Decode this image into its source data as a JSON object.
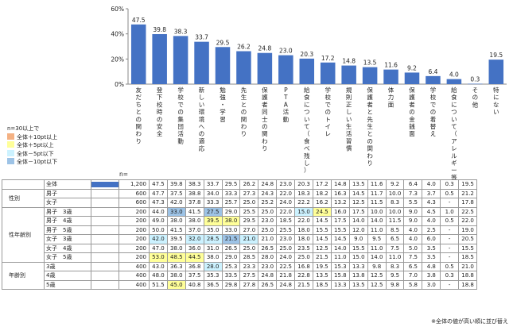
{
  "chart_data": {
    "type": "bar",
    "n_label": "n=",
    "ylim": [
      0,
      60
    ],
    "yticks": [
      "0%",
      "20%",
      "40%",
      "60%"
    ],
    "categories": [
      "友だちとの関わり",
      "登下校時の安全",
      "学校での集団活動",
      "新しい環境への適応",
      "勉強・学習",
      "先生との関わり",
      "保護者同士の関わり",
      "PTA活動",
      "給食について（食べ残し）",
      "学校でのトイレ",
      "規則正しい生活習慣",
      "保護者と先生との関わり",
      "体力面",
      "保護者の金銭面",
      "学校での着替え",
      "給食について（アレルギー等）",
      "その他",
      "特にない"
    ],
    "values": [
      47.5,
      39.8,
      38.3,
      33.7,
      29.5,
      26.2,
      24.8,
      23.0,
      20.3,
      17.2,
      14.8,
      13.5,
      11.6,
      9.2,
      6.4,
      4.0,
      0.3,
      19.5
    ],
    "value_labels": [
      "47.5",
      "39.8",
      "38.3",
      "33.7",
      "29.5",
      "26.2",
      "24.8",
      "23.0",
      "20.3",
      "17.2",
      "14.8",
      "13.5",
      "11.6",
      "9.2",
      "6.4",
      "4.0",
      "0.3",
      "19.5"
    ]
  },
  "legend": {
    "title": "n=30以上で",
    "items": [
      {
        "label": "全体＋10pt以上",
        "color": "#F4B183"
      },
      {
        "label": "全体＋5pt以上",
        "color": "#FFFF99"
      },
      {
        "label": "全体－5pt以下",
        "color": "#CCF2FF"
      },
      {
        "label": "全体－10pt以下",
        "color": "#9DC3E6"
      }
    ]
  },
  "table": {
    "total": {
      "label": "全体",
      "n": "1,200",
      "cells": [
        "47.5",
        "39.8",
        "38.3",
        "33.7",
        "29.5",
        "26.2",
        "24.8",
        "23.0",
        "20.3",
        "17.2",
        "14.8",
        "13.5",
        "11.6",
        "9.2",
        "6.4",
        "4.0",
        "0.3",
        "19.5"
      ]
    },
    "groups": [
      {
        "name": "性別",
        "rows": [
          {
            "label": "男子",
            "n": "600",
            "cells": [
              "47.7",
              "37.5",
              "38.8",
              "34.0",
              "33.3",
              "27.3",
              "24.3",
              "22.0",
              "18.3",
              "18.2",
              "16.3",
              "14.5",
              "11.7",
              "10.0",
              "7.3",
              "3.7",
              "0.5",
              "21.2"
            ],
            "hl": {}
          },
          {
            "label": "女子",
            "n": "600",
            "cells": [
              "47.3",
              "42.0",
              "37.8",
              "33.3",
              "25.7",
              "25.0",
              "25.2",
              "24.0",
              "22.2",
              "16.2",
              "13.2",
              "12.5",
              "11.5",
              "8.3",
              "5.5",
              "4.3",
              "-",
              "17.8"
            ],
            "hl": {}
          }
        ]
      },
      {
        "name": "性年齢別",
        "rows": [
          {
            "label": "男子　3歳",
            "n": "200",
            "cells": [
              "44.0",
              "33.0",
              "41.5",
              "27.5",
              "29.0",
              "25.5",
              "25.0",
              "22.0",
              "15.0",
              "24.5",
              "16.0",
              "17.5",
              "10.0",
              "10.0",
              "9.0",
              "4.5",
              "1.0",
              "22.5"
            ],
            "hl": {
              "1": "lo2",
              "3": "lo2",
              "8": "lo1",
              "9": "hi2"
            }
          },
          {
            "label": "男子　4歳",
            "n": "200",
            "cells": [
              "49.0",
              "38.0",
              "38.0",
              "39.5",
              "38.0",
              "29.5",
              "23.0",
              "18.5",
              "22.0",
              "14.5",
              "17.5",
              "14.0",
              "14.0",
              "11.5",
              "9.0",
              "4.0",
              "0.5",
              "22.0"
            ],
            "hl": {
              "3": "hi2",
              "4": "hi2"
            }
          },
          {
            "label": "男子　5歳",
            "n": "200",
            "cells": [
              "50.0",
              "41.5",
              "37.0",
              "35.0",
              "33.0",
              "27.0",
              "25.0",
              "25.5",
              "18.0",
              "15.5",
              "15.5",
              "12.0",
              "11.0",
              "8.5",
              "4.0",
              "2.5",
              "-",
              "19.0"
            ],
            "hl": {}
          },
          {
            "label": "女子　3歳",
            "n": "200",
            "cells": [
              "42.0",
              "39.5",
              "32.0",
              "28.5",
              "21.5",
              "21.0",
              "21.0",
              "23.0",
              "18.0",
              "14.5",
              "14.5",
              "9.0",
              "9.5",
              "6.5",
              "4.0",
              "6.0",
              "-",
              "20.5"
            ],
            "hl": {
              "0": "lo1",
              "2": "lo1",
              "3": "lo1",
              "4": "lo2",
              "5": "lo1"
            }
          },
          {
            "label": "女子　4歳",
            "n": "200",
            "cells": [
              "47.0",
              "38.0",
              "36.0",
              "31.0",
              "26.5",
              "25.0",
              "26.5",
              "25.0",
              "23.5",
              "12.5",
              "14.0",
              "15.5",
              "11.0",
              "7.5",
              "5.0",
              "3.5",
              "-",
              "15.5"
            ],
            "hl": {}
          },
          {
            "label": "女子　5歳",
            "n": "200",
            "cells": [
              "53.0",
              "48.5",
              "44.5",
              "38.0",
              "29.0",
              "28.5",
              "28.0",
              "24.0",
              "25.0",
              "21.5",
              "11.0",
              "15.0",
              "14.0",
              "11.0",
              "7.5",
              "3.5",
              "-",
              "18.5"
            ],
            "hl": {
              "0": "hi2",
              "1": "hi2",
              "2": "hi2"
            }
          }
        ]
      },
      {
        "name": "年齢別",
        "rows": [
          {
            "label": "3歳",
            "n": "400",
            "cells": [
              "43.0",
              "36.3",
              "36.8",
              "28.0",
              "25.3",
              "23.3",
              "23.0",
              "22.5",
              "16.8",
              "19.5",
              "15.3",
              "13.3",
              "9.8",
              "8.3",
              "6.5",
              "4.8",
              "0.5",
              "21.0"
            ],
            "hl": {
              "3": "lo1"
            }
          },
          {
            "label": "4歳",
            "n": "400",
            "cells": [
              "48.0",
              "38.0",
              "37.5",
              "35.3",
              "33.5",
              "27.5",
              "24.8",
              "21.8",
              "22.8",
              "13.5",
              "15.8",
              "13.8",
              "12.5",
              "9.5",
              "7.0",
              "3.8",
              "0.3",
              "18.8"
            ],
            "hl": {}
          },
          {
            "label": "5歳",
            "n": "400",
            "cells": [
              "51.5",
              "45.0",
              "40.8",
              "36.5",
              "29.8",
              "27.8",
              "26.5",
              "24.8",
              "21.5",
              "18.5",
              "13.3",
              "13.5",
              "12.5",
              "9.8",
              "5.8",
              "3.0",
              "-",
              "18.8"
            ],
            "hl": {
              "1": "hi2"
            }
          }
        ]
      }
    ]
  },
  "footnote": "※全体の値が高い順に並び替え"
}
